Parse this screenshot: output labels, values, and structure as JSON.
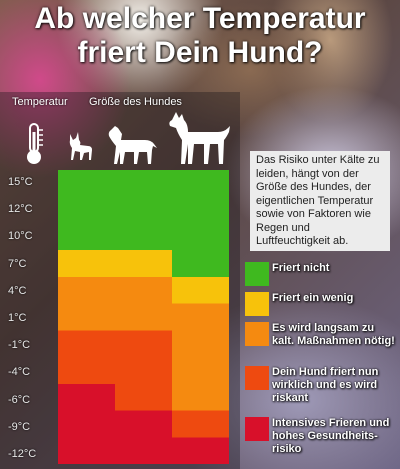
{
  "title_line1": "Ab welcher Temperatur",
  "title_line2": "friert Dein Hund?",
  "header": {
    "temperature": "Temperatur",
    "dog_size": "Größe des Hundes"
  },
  "temperatures": [
    "15°C",
    "12°C",
    "10°C",
    "7°C",
    "4°C",
    "1°C",
    "-1°C",
    "-4°C",
    "-6°C",
    "-9°C",
    "-12°C"
  ],
  "dog_sizes": [
    "small",
    "medium",
    "large"
  ],
  "colors": {
    "green": "#3fb91f",
    "yellow": "#f7c20b",
    "orange": "#f58a10",
    "red_orange": "#ee4a10",
    "red": "#d8102a"
  },
  "chart_data": {
    "type": "heatmap",
    "columns": [
      "small",
      "medium",
      "large"
    ],
    "rows": [
      "15°C",
      "12°C",
      "10°C",
      "7°C",
      "4°C",
      "1°C",
      "-1°C",
      "-4°C",
      "-6°C",
      "-9°C",
      "-12°C"
    ],
    "cells": [
      [
        "green",
        "green",
        "green"
      ],
      [
        "green",
        "green",
        "green"
      ],
      [
        "green",
        "green",
        "green"
      ],
      [
        "yellow",
        "yellow",
        "green"
      ],
      [
        "orange",
        "orange",
        "yellow"
      ],
      [
        "orange",
        "orange",
        "orange"
      ],
      [
        "red_orange",
        "red_orange",
        "orange"
      ],
      [
        "red_orange",
        "red_orange",
        "orange"
      ],
      [
        "red",
        "red_orange",
        "orange"
      ],
      [
        "red",
        "red",
        "red_orange"
      ],
      [
        "red",
        "red",
        "red"
      ]
    ]
  },
  "info_text": "Das Risiko unter Kälte zu leiden, hängt von der Größe des Hundes, der eigentlichen Temperatur sowie von Faktoren wie Regen und Luftfeuchtigkeit ab.",
  "legend": [
    {
      "key": "green",
      "lines": [
        "Friert nicht"
      ]
    },
    {
      "key": "yellow",
      "lines": [
        "Friert ein wenig"
      ]
    },
    {
      "key": "orange",
      "lines": [
        "Es wird langsam zu",
        "kalt. Maßnahmen nötig!"
      ]
    },
    {
      "key": "red_orange",
      "lines": [
        "Dein Hund friert nun",
        "wirklich und es wird",
        "riskant"
      ]
    },
    {
      "key": "red",
      "lines": [
        "Intensives Frieren und",
        "hohes Gesundheits-",
        "risiko"
      ]
    }
  ]
}
